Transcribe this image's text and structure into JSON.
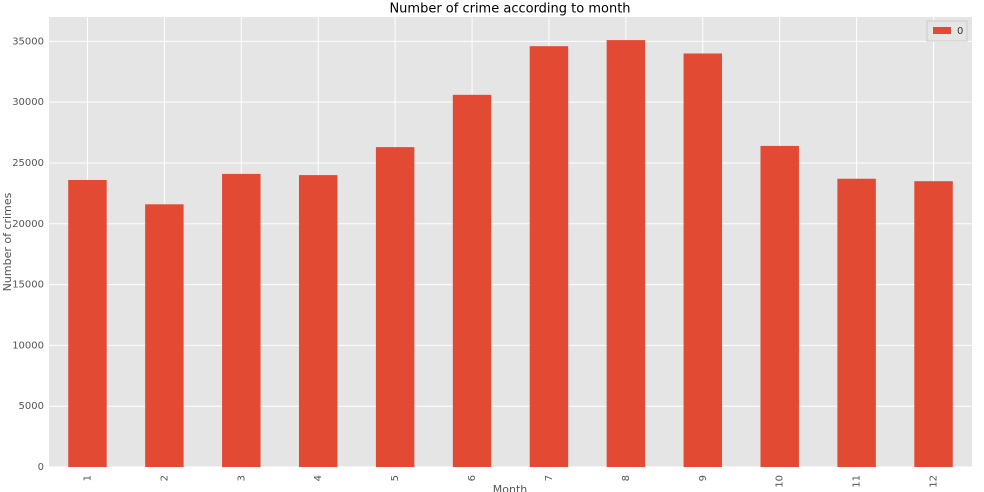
{
  "chart_data": {
    "type": "bar",
    "title": "Number of crime according to month",
    "x_label": "Month",
    "y_label": "Number of crimes",
    "categories": [
      "1",
      "2",
      "3",
      "4",
      "5",
      "6",
      "7",
      "8",
      "9",
      "10",
      "11",
      "12"
    ],
    "series": [
      {
        "name": "0",
        "color": "#E24A33",
        "values": [
          23600,
          21600,
          24100,
          24000,
          26300,
          30600,
          34600,
          35100,
          34000,
          26400,
          23700,
          23500
        ]
      }
    ],
    "ylim": [
      0,
      37000
    ],
    "yticks": [
      0,
      5000,
      10000,
      15000,
      20000,
      25000,
      30000,
      35000
    ],
    "grid": true,
    "legend": "upper right"
  }
}
